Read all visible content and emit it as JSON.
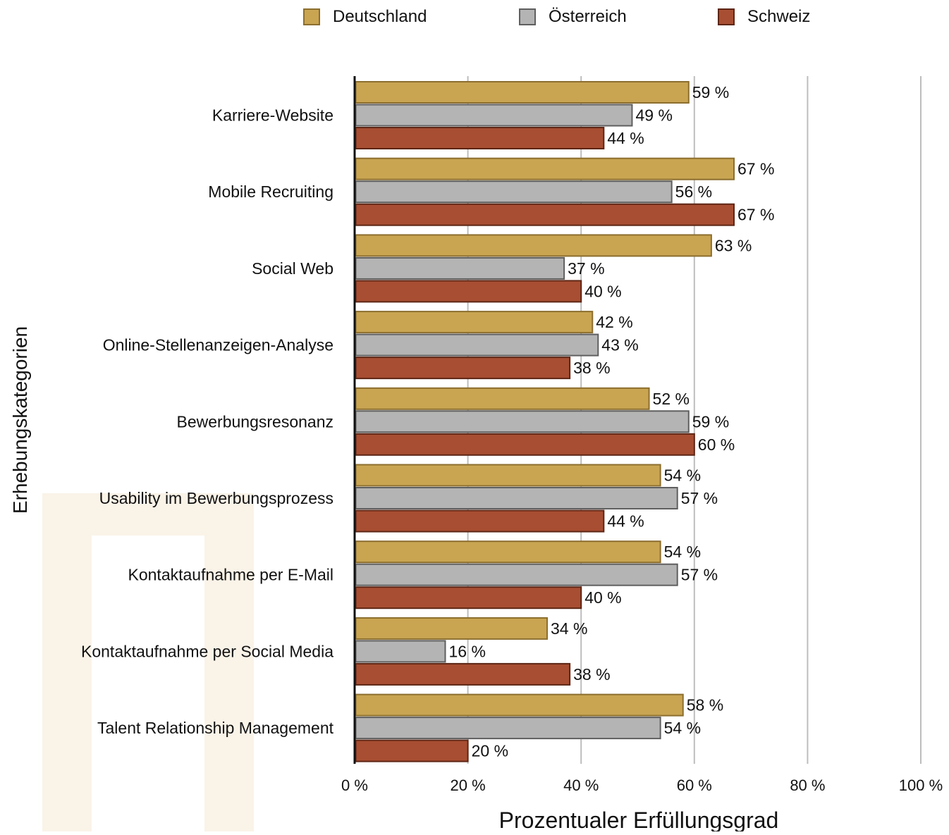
{
  "chart_data": {
    "type": "bar",
    "orientation": "horizontal",
    "xlabel": "Prozentualer Erfüllungsgrad",
    "ylabel": "Erhebungskategorien",
    "xlim": [
      0,
      100
    ],
    "x_ticks": [
      "0 %",
      "20 %",
      "40 %",
      "60 %",
      "80 %",
      "100 %"
    ],
    "grid": "vertical",
    "legend_position": "top",
    "value_suffix": " %",
    "categories": [
      "Karriere-Website",
      "Mobile Recruiting",
      "Social Web",
      "Online-Stellenanzeigen-Analyse",
      "Bewerbungsresonanz",
      "Usability im Bewerbungsprozess",
      "Kontaktaufnahme per E-Mail",
      "Kontaktaufnahme per Social Media",
      "Talent Relationship Management"
    ],
    "series": [
      {
        "name": "Deutschland",
        "color": "#c9a552",
        "border": "#8c6e2e",
        "values": [
          59,
          67,
          63,
          42,
          52,
          54,
          54,
          34,
          58
        ]
      },
      {
        "name": "Österreich",
        "color": "#b4b4b4",
        "border": "#5f5f5f",
        "values": [
          49,
          56,
          37,
          43,
          59,
          57,
          57,
          16,
          54
        ]
      },
      {
        "name": "Schweiz",
        "color": "#a84e32",
        "border": "#5e2615",
        "values": [
          44,
          67,
          40,
          38,
          60,
          44,
          40,
          38,
          20
        ]
      }
    ]
  }
}
